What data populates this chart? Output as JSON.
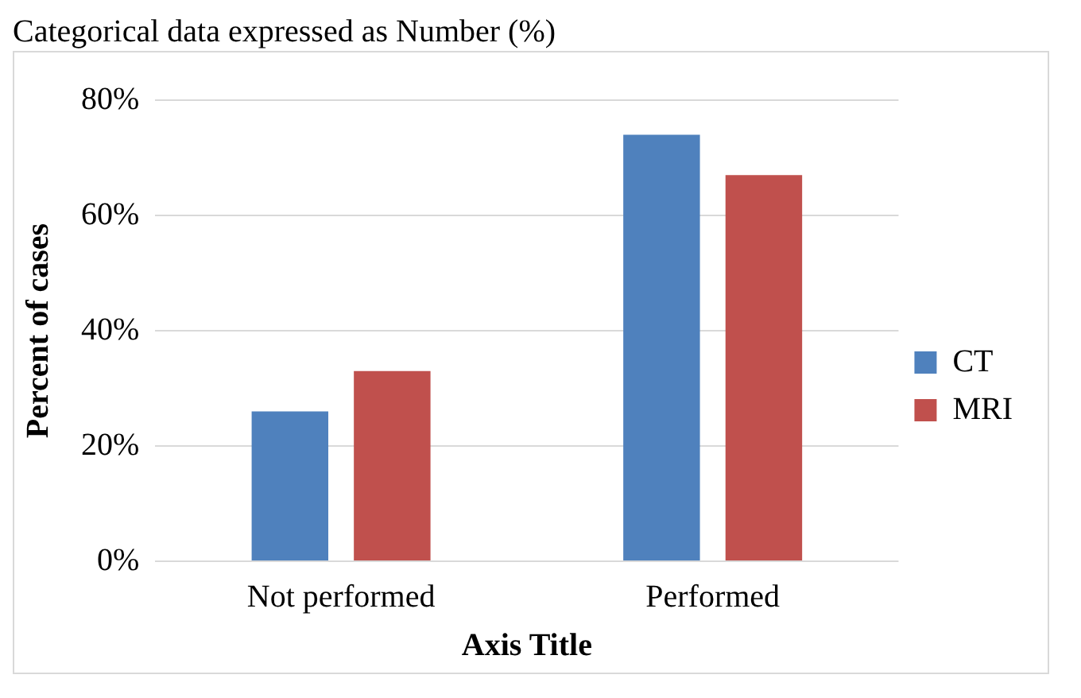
{
  "chart_data": {
    "type": "bar",
    "title": "Categorical data expressed as Number (%)",
    "xlabel": "Axis Title",
    "ylabel": "Percent of cases",
    "categories": [
      "Not performed",
      "Performed"
    ],
    "series": [
      {
        "name": "CT",
        "color": "#4f81bd",
        "values": [
          26,
          74
        ]
      },
      {
        "name": "MRI",
        "color": "#c0504d",
        "values": [
          33,
          67
        ]
      }
    ],
    "ylim": [
      0,
      80
    ],
    "yticks": [
      {
        "value": 0,
        "label": "0%"
      },
      {
        "value": 20,
        "label": "20%"
      },
      {
        "value": 40,
        "label": "40%"
      },
      {
        "value": 60,
        "label": "60%"
      },
      {
        "value": 80,
        "label": "80%"
      }
    ],
    "grid": "y",
    "legend": "right"
  }
}
